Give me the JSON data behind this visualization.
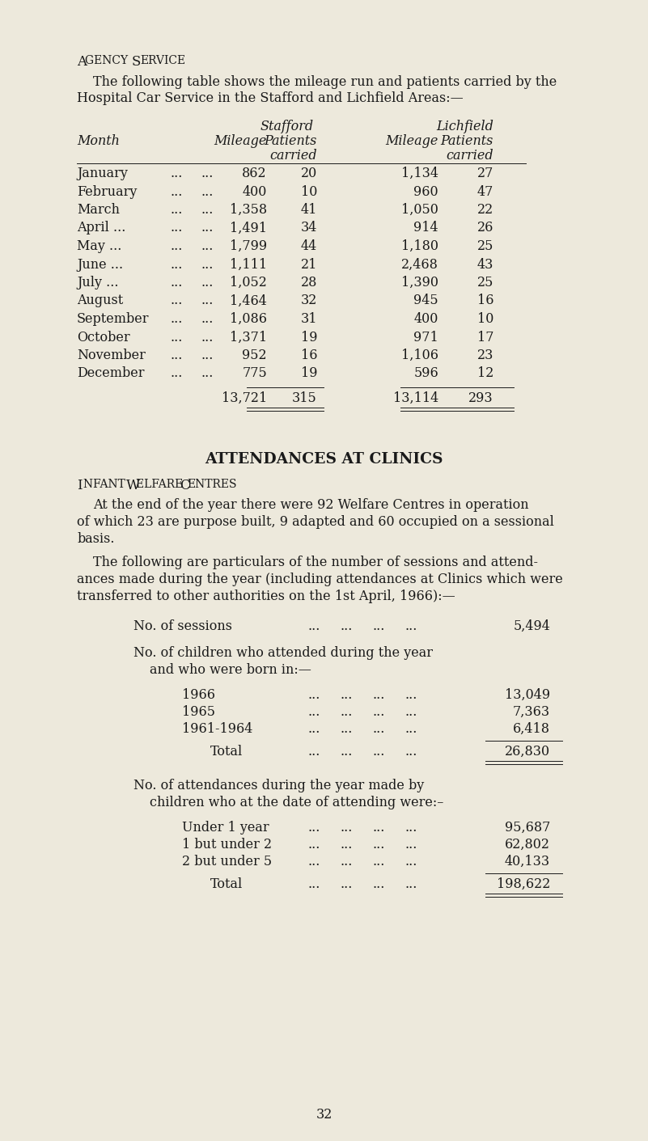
{
  "bg_color": "#ede9dc",
  "text_color": "#1a1a1a",
  "section1_heading_upper": "A",
  "section1_heading_small": "GENCY ",
  "section1_heading_upper2": "S",
  "section1_heading_small2": "ERVICE",
  "section1_intro_line1": "The following table shows the mileage run and patients carried by the",
  "section1_intro_line2": "Hospital Car Service in the Stafford and Lichfield Areas:—",
  "table_header_stafford": "Stafford",
  "table_header_lichfield": "Lichfield",
  "months": [
    "January",
    "February",
    "March",
    "April",
    "May",
    "June",
    "July",
    "August",
    "September",
    "October",
    "November",
    "December"
  ],
  "month_trailing": [
    "",
    "",
    "",
    " ...",
    " ...",
    " ...",
    " ...",
    "",
    "",
    "",
    "",
    ""
  ],
  "stafford_mileage": [
    "862",
    "400",
    "1,358",
    "1,491",
    "1,799",
    "1,111",
    "1,052",
    "1,464",
    "1,086",
    "1,371",
    "952",
    "775"
  ],
  "stafford_patients": [
    "20",
    "10",
    "41",
    "34",
    "44",
    "21",
    "28",
    "32",
    "31",
    "19",
    "16",
    "19"
  ],
  "lichfield_mileage": [
    "1,134",
    "960",
    "1,050",
    "914",
    "1,180",
    "2,468",
    "1,390",
    "945",
    "400",
    "971",
    "1,106",
    "596"
  ],
  "lichfield_patients": [
    "27",
    "47",
    "22",
    "26",
    "25",
    "43",
    "25",
    "16",
    "10",
    "17",
    "23",
    "12"
  ],
  "total_stafford_mileage": "13,721",
  "total_stafford_patients": "315",
  "total_lichfield_mileage": "13,114",
  "total_lichfield_patients": "293",
  "section2_heading": "ATTENDANCES AT CLINICS",
  "section2_subheading": "Infant Welfare Centres",
  "section2_para1_line1": "At the end of the year there were 92 Welfare Centres in operation",
  "section2_para1_line2": "of which 23 are purpose built, 9 adapted and 60 occupied on a sessional",
  "section2_para1_line3": "basis.",
  "section2_para2_line1": "The following are particulars of the number of sessions and attend-",
  "section2_para2_line2": "ances made during the year (including attendances at Clinics which were",
  "section2_para2_line3": "transferred to other authorities on the 1st April, 1966):—",
  "sessions_label": "No. of sessions",
  "sessions_value": "5,494",
  "children_line1": "No. of children who attended during the year",
  "children_line2": "and who were born in:—",
  "children_years": [
    "1966",
    "1965",
    "1961-1964"
  ],
  "children_values": [
    "13,049",
    "7,363",
    "6,418"
  ],
  "children_total_label": "Total",
  "children_total_value": "26,830",
  "attendance_line1": "No. of attendances during the year made by",
  "attendance_line2": "children who at the date of attending were:–",
  "attendance_ages": [
    "Under 1 year",
    "1 but under 2",
    "2 but under 5"
  ],
  "attendance_values": [
    "95,687",
    "62,802",
    "40,133"
  ],
  "attendance_total_label": "Total",
  "attendance_total_value": "198,622",
  "page_number": "32"
}
